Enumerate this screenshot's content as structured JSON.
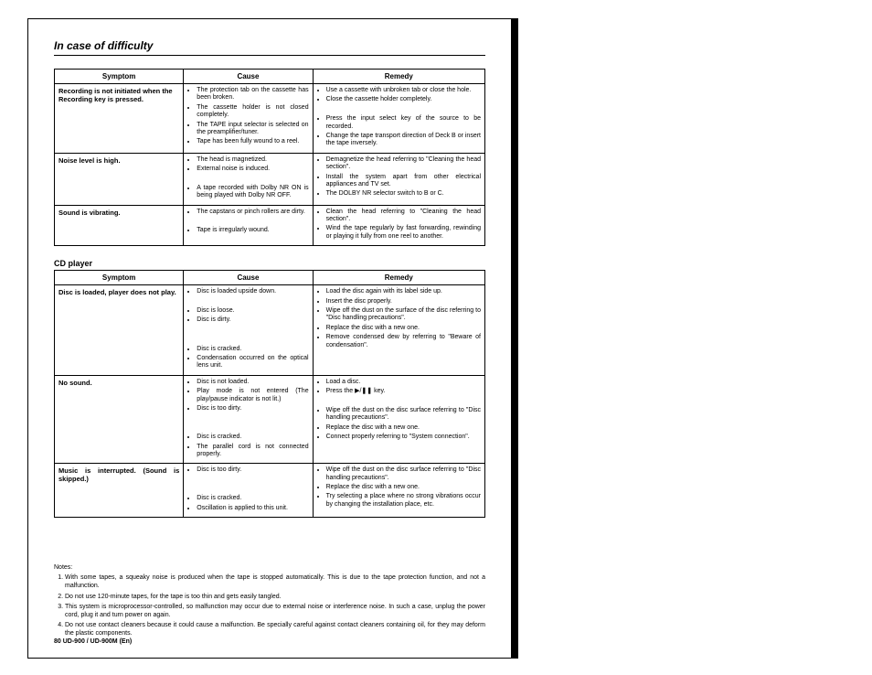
{
  "title": "In case of difficulty",
  "headers": {
    "symptom": "Symptom",
    "cause": "Cause",
    "remedy": "Remedy"
  },
  "table1": [
    {
      "symptom": "Recording is not initiated when the Recording key is pressed.",
      "cause": [
        "The protection tab on the cassette has been broken.",
        "The cassette holder is not closed completely.",
        "The TAPE input selector is selected on the preamplifier/tuner.",
        "Tape has been fully wound to a reel."
      ],
      "remedy": [
        "Use a cassette with unbroken tab or close the hole.",
        "Close the cassette holder completely.",
        "",
        "Press the input select key of the source to be recorded.",
        "Change the tape transport direction of Deck B or insert the tape inversely."
      ]
    },
    {
      "symptom": "Noise level is high.",
      "cause": [
        "The head is magnetized.",
        "External noise is induced.",
        "",
        "A tape recorded with Dolby NR ON is being played with Dolby NR OFF."
      ],
      "remedy": [
        "Demagnetize the head referring to \"Cleaning the head section\".",
        "Install the system apart from other electrical appliances and TV set.",
        "The DOLBY NR selector switch to B or C."
      ]
    },
    {
      "symptom": "Sound is vibrating.",
      "cause": [
        "The capstans or pinch rollers are dirty.",
        "",
        "Tape is irregularly wound."
      ],
      "remedy": [
        "Clean the head referring to \"Cleaning the head section\".",
        "Wind the tape regularly by fast forwarding, rewinding or playing it fully from one reel to another."
      ]
    }
  ],
  "subtitle": "CD player",
  "table2": [
    {
      "symptom": "Disc is loaded, player does not play.",
      "cause": [
        "Disc is loaded upside down.",
        "",
        "Disc is loose.",
        "Disc is dirty.",
        "",
        "",
        "Disc is cracked.",
        "Condensation occurred on the optical lens unit."
      ],
      "remedy": [
        "Load the disc again with its label side up.",
        "Insert the disc properly.",
        "Wipe off the dust on the surface of the disc referring to \"Disc handling precautions\".",
        "Replace the disc with a new one.",
        "Remove condensed dew by referring to \"Beware of condensation\"."
      ]
    },
    {
      "symptom": "No sound.",
      "cause": [
        "Disc is not loaded.",
        "Play mode is not entered (The play/pause indicator is not lit.)",
        "Disc is too dirty.",
        "",
        "",
        "Disc is cracked.",
        "The parallel cord is not connected properly."
      ],
      "remedy": [
        "Load a disc.",
        "Press the ▶/❚❚ key.",
        "",
        "Wipe off the dust on the disc surface referring to \"Disc handling precautions\".",
        "Replace the disc with a new one.",
        "Connect properly referring to \"System connection\"."
      ]
    },
    {
      "symptom_html": "Music is interrupted. (Sound is skipped.)",
      "cause": [
        "Disc is too dirty.",
        "",
        "",
        "Disc is cracked.",
        "Oscillation is applied to this unit."
      ],
      "remedy": [
        "Wipe off the dust on the disc surface referring to \"Disc handling precautions\".",
        "Replace the disc with a new one.",
        "Try selecting a place where no strong vibrations occur by changing the installation place, etc."
      ]
    }
  ],
  "notes_label": "Notes:",
  "notes": [
    "With some tapes, a squeaky noise is produced when the tape is stopped automatically. This is due to the tape protection function, and not a malfunction.",
    "Do not use 120-minute tapes, for the tape is too thin and gets easily tangled.",
    "This system is microprocessor-controlled, so malfunction may occur due to external noise or interference noise. In such a case, unplug the power cord, plug it and turn power on again.",
    "Do not use contact cleaners because it could cause a malfunction. Be specially careful against contact cleaners containing oil, for they may deform the plastic components."
  ],
  "footer": "80 UD-900 / UD-900M (En)"
}
